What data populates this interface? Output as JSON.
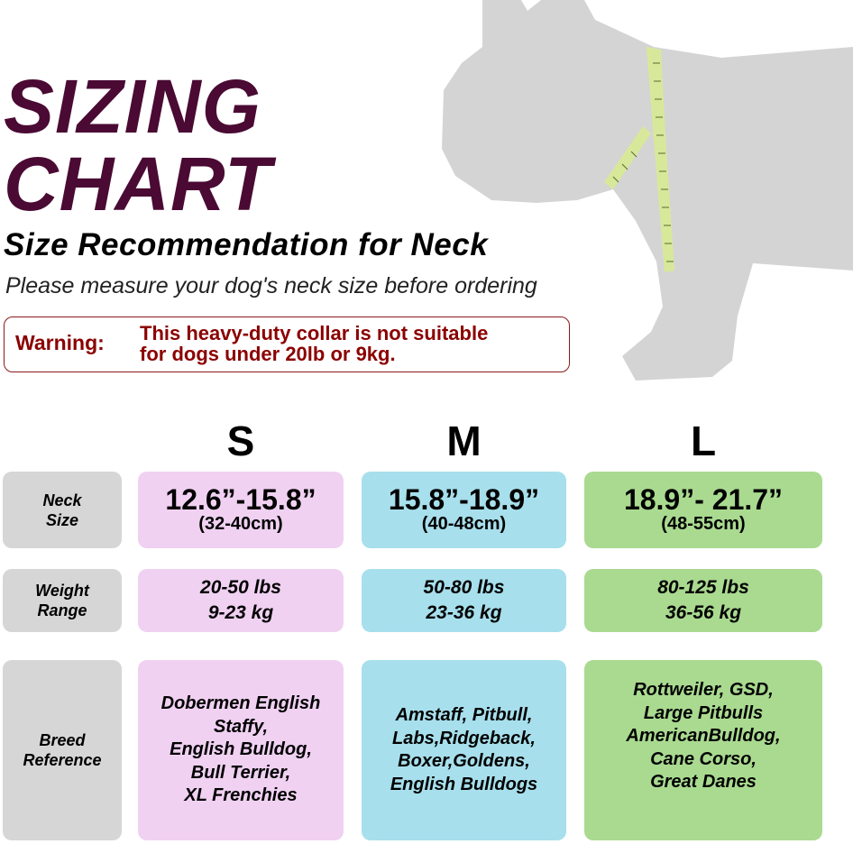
{
  "title": {
    "line1": "SIZING",
    "line2": "CHART"
  },
  "subtitle": "Size Recommendation for Neck",
  "instruction": "Please measure your dog's neck size before ordering",
  "warning": {
    "label": "Warning:",
    "message_line1": "This heavy-duty collar is not suitable",
    "message_line2": "for dogs under 20lb or 9kg."
  },
  "colors": {
    "title": "#4a0a33",
    "warning": "#8b0000",
    "label_bg": "#d6d6d6",
    "s": "#f0d1f2",
    "m": "#a7dfec",
    "l": "#a9da90",
    "dog": "#d4d4d4",
    "tape": "#d8e89a"
  },
  "sizes": [
    {
      "name": "S",
      "neck_in": "12.6”-15.8”",
      "neck_cm": "(32-40cm)",
      "weight_lbs": "20-50 lbs",
      "weight_kg": "9-23 kg",
      "breeds": [
        "Dobermen English",
        "Staffy,",
        "English Bulldog,",
        "Bull Terrier,",
        "XL Frenchies"
      ]
    },
    {
      "name": "M",
      "neck_in": "15.8”-18.9”",
      "neck_cm": "(40-48cm)",
      "weight_lbs": "50-80 lbs",
      "weight_kg": "23-36 kg",
      "breeds": [
        "Amstaff, Pitbull,",
        "Labs,Ridgeback,",
        "Boxer,Goldens,",
        "English Bulldogs"
      ]
    },
    {
      "name": "L",
      "neck_in": "18.9”- 21.7”",
      "neck_cm": "(48-55cm)",
      "weight_lbs": "80-125 lbs",
      "weight_kg": "36-56 kg",
      "breeds": [
        "Rottweiler, GSD,",
        "Large Pitbulls",
        "AmericanBulldog,",
        "Cane Corso,",
        "Great Danes"
      ]
    }
  ],
  "row_labels": {
    "neck": [
      "Neck",
      "Size"
    ],
    "weight": [
      "Weight",
      "Range"
    ],
    "breed": [
      "Breed",
      "Reference"
    ]
  }
}
